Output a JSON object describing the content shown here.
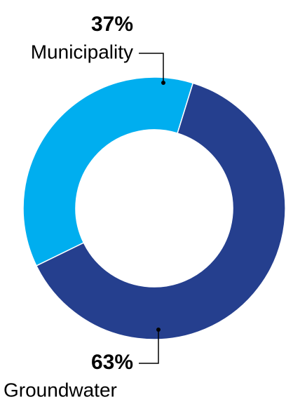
{
  "chart_data": {
    "type": "donut",
    "categories": [
      "Municipality",
      "Groundwater"
    ],
    "values": [
      37,
      63
    ],
    "value_labels": [
      "37%",
      "63%"
    ],
    "colors": [
      "#00aeef",
      "#253f8e"
    ]
  }
}
